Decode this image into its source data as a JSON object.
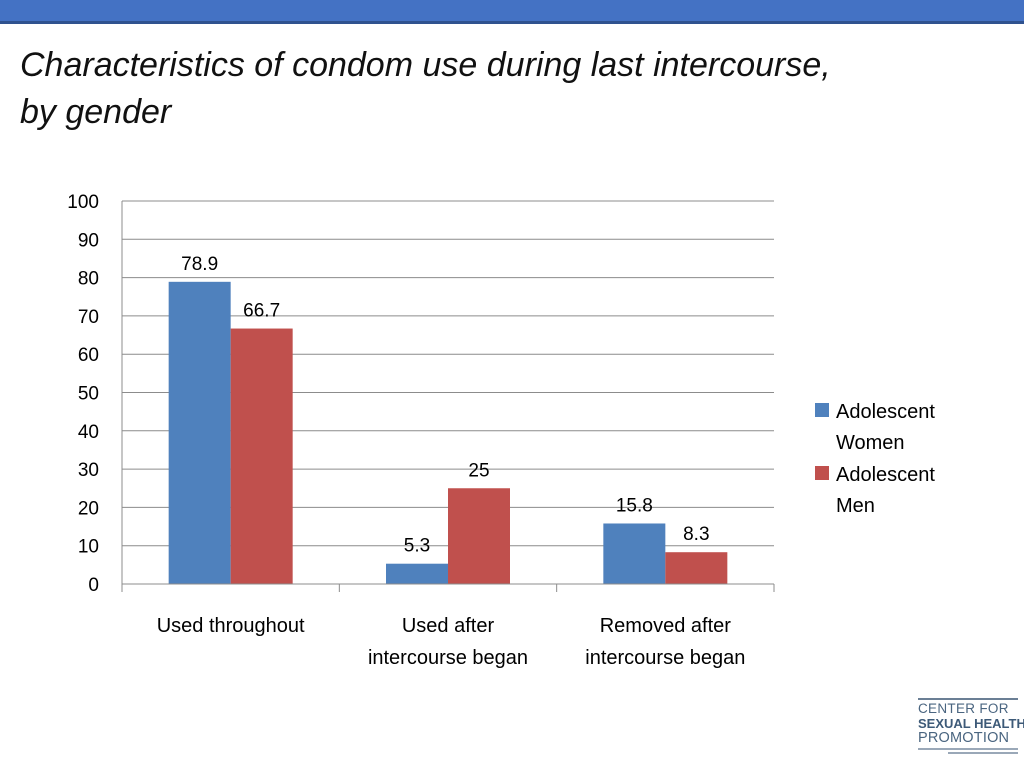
{
  "slide": {
    "title_line1": "Characteristics of condom use during last intercourse,",
    "title_line2": "by gender"
  },
  "chart_data": {
    "type": "bar",
    "categories": [
      [
        "Used throughout"
      ],
      [
        "Used after",
        "intercourse began"
      ],
      [
        "Removed after",
        "intercourse began"
      ]
    ],
    "series": [
      {
        "name": "Adolescent Women",
        "legend_lines": [
          "Adolescent",
          "Women"
        ],
        "color": "#4f81bd",
        "values": [
          78.9,
          5.3,
          15.8
        ]
      },
      {
        "name": "Adolescent Men",
        "legend_lines": [
          "Adolescent",
          "Men"
        ],
        "color": "#c0504d",
        "values": [
          66.7,
          25,
          8.3
        ]
      }
    ],
    "ylim": [
      0,
      100
    ],
    "yticks": [
      0,
      10,
      20,
      30,
      40,
      50,
      60,
      70,
      80,
      90,
      100
    ],
    "grid": true,
    "legend_position": "right",
    "data_labels": true
  },
  "logo": {
    "line1": "CENTER FOR",
    "line2": "SEXUAL HEALTH",
    "line3": "PROMOTION"
  }
}
